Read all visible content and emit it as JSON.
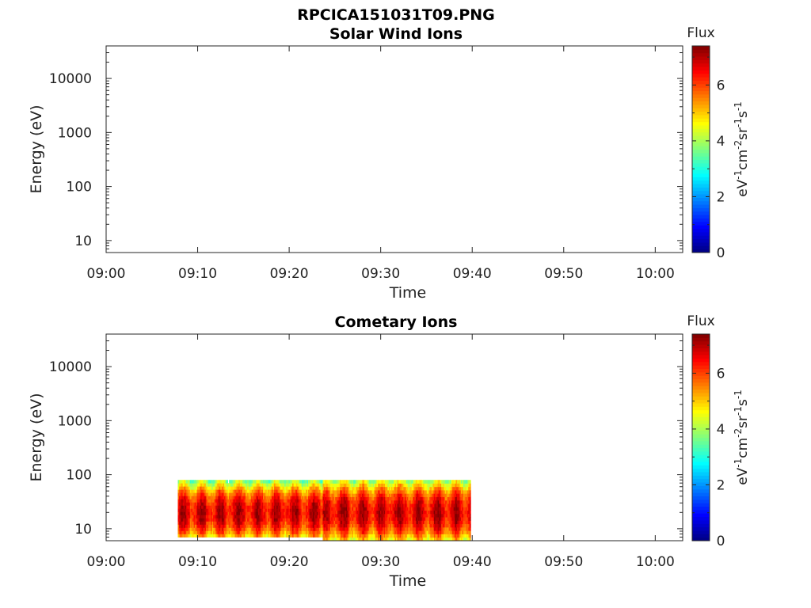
{
  "figure": {
    "filename": "RPCICA151031T09.PNG"
  },
  "colormap": [
    "#00007f",
    "#0000ff",
    "#007fff",
    "#00ffff",
    "#7fff7f",
    "#ffff00",
    "#ff7f00",
    "#ff0000",
    "#7f0000"
  ],
  "chart_data": [
    {
      "type": "heatmap",
      "title": "Solar Wind Ions",
      "xlabel": "Time",
      "ylabel": "Energy (eV)",
      "yscale": "log",
      "ylim": [
        6,
        40000
      ],
      "xlim": [
        "09:00",
        "10:03"
      ],
      "x_ticks": [
        "09:00",
        "09:10",
        "09:20",
        "09:30",
        "09:40",
        "09:50",
        "10:00"
      ],
      "y_ticks": [
        "10",
        "100",
        "1000",
        "10000"
      ],
      "colorbar": {
        "label": "Flux",
        "units": "eV-1cm-2sr-1s-1",
        "range": [
          0,
          7.4
        ],
        "ticks": [
          "0",
          "2",
          "4",
          "6"
        ]
      },
      "data": []
    },
    {
      "type": "heatmap",
      "title": "Cometary Ions",
      "xlabel": "Time",
      "ylabel": "Energy (eV)",
      "yscale": "log",
      "ylim": [
        6,
        40000
      ],
      "xlim": [
        "09:00",
        "10:03"
      ],
      "x_ticks": [
        "09:00",
        "09:10",
        "09:20",
        "09:30",
        "09:40",
        "09:50",
        "10:00"
      ],
      "y_ticks": [
        "10",
        "100",
        "1000",
        "10000"
      ],
      "colorbar": {
        "label": "Flux",
        "units": "eV-1cm-2sr-1s-1",
        "range": [
          0,
          7.4
        ],
        "ticks": [
          "0",
          "2",
          "4",
          "6"
        ]
      },
      "data": [
        {
          "t_start": "09:07:50",
          "t_end": "09:23:40",
          "e_min": 7,
          "e_max": 80,
          "peak_e": 20,
          "peak_flux": 7
        },
        {
          "t_start": "09:23:40",
          "t_end": "09:39:50",
          "e_min": 6,
          "e_max": 80,
          "peak_e": 20,
          "peak_flux": 7
        }
      ]
    }
  ]
}
